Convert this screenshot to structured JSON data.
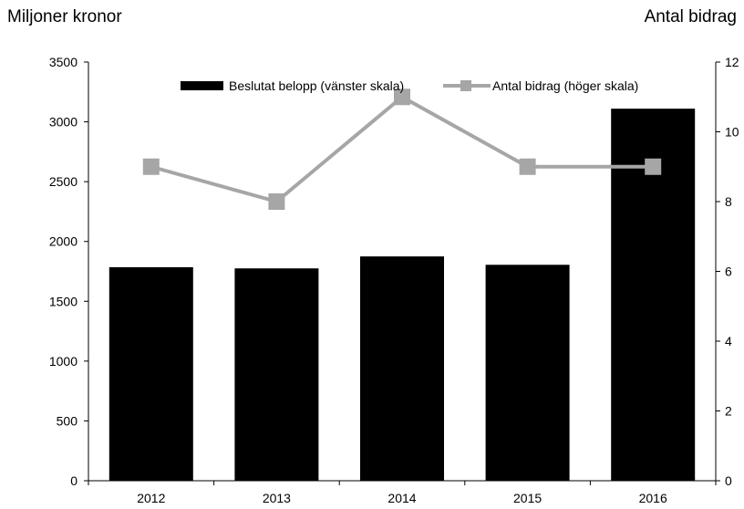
{
  "left_unit_label": "Miljoner kronor",
  "right_unit_label": "Antal bidrag",
  "chart_data": {
    "type": "bar",
    "categories": [
      "2012",
      "2013",
      "2014",
      "2015",
      "2016"
    ],
    "series": [
      {
        "name": "Beslutat belopp (vänster skala)",
        "type": "bar",
        "axis": "left",
        "values": [
          1785,
          1775,
          1875,
          1805,
          3110
        ],
        "color": "#000000"
      },
      {
        "name": "Antal bidrag (höger skala)",
        "type": "line",
        "axis": "right",
        "values": [
          9,
          8,
          11,
          9,
          9
        ],
        "color": "#a6a6a6"
      }
    ],
    "y_left": {
      "min": 0,
      "max": 3500,
      "ticks": [
        0,
        500,
        1000,
        1500,
        2000,
        2500,
        3000,
        3500
      ]
    },
    "y_right": {
      "min": 0,
      "max": 12,
      "ticks": [
        0,
        2,
        4,
        6,
        8,
        10,
        12
      ]
    },
    "grid": false,
    "legend_position": "top"
  }
}
